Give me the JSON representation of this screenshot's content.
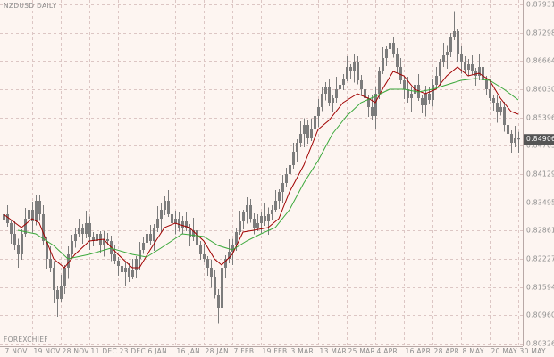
{
  "chart_data": {
    "type": "candlestick",
    "title": "NZDUSD DAILY",
    "watermark": "FOREXCHIEF",
    "categories": [
      "7 NOV",
      null,
      null,
      null,
      null,
      null,
      null,
      null,
      "19 NOV",
      null,
      null,
      null,
      null,
      null,
      null,
      null,
      "28 NOV",
      null,
      null,
      null,
      null,
      null,
      null,
      null,
      "11 DEC",
      null,
      null,
      null,
      null,
      null,
      null,
      null,
      "23 DEC",
      null,
      null,
      null,
      null,
      null,
      null,
      null,
      "6 JAN",
      null,
      null,
      null,
      null,
      null,
      null,
      null,
      "16 JAN",
      null,
      null,
      null,
      null,
      null,
      null,
      null,
      "28 JAN",
      null,
      null,
      null,
      null,
      null,
      null,
      null,
      "7 FEB",
      null,
      null,
      null,
      null,
      null,
      null,
      null,
      "19 FEB",
      null,
      null,
      null,
      null,
      null,
      null,
      null,
      "3 MAR",
      null,
      null,
      null,
      null,
      null,
      null,
      null,
      "13 MAR",
      null,
      null,
      null,
      null,
      null,
      null,
      null,
      "25 MAR",
      null,
      null,
      null,
      null,
      null,
      null,
      null,
      "4 APR",
      null,
      null,
      null,
      null,
      null,
      null,
      null,
      "16 APR",
      null,
      null,
      null,
      null,
      null,
      null,
      null,
      "28 APR",
      null,
      null,
      null,
      null,
      null,
      null,
      null,
      "8 MAY",
      null,
      null,
      null,
      null,
      null,
      null,
      null,
      "20 MAY",
      null,
      null,
      null,
      null,
      null,
      null,
      null,
      "30 MAY"
    ],
    "open": [
      0.831,
      0.8323,
      0.8303,
      0.8279,
      0.8253,
      0.8233,
      0.8279,
      0.8313,
      0.8333,
      0.8307,
      0.8353,
      0.8323,
      0.8263,
      0.8223,
      0.8203,
      0.8153,
      0.8133,
      0.8163,
      0.8203,
      0.8233,
      0.8263,
      0.8279,
      0.8293,
      0.8279,
      0.8303,
      0.8273,
      0.8263,
      0.8279,
      0.8253,
      0.8267,
      0.8263,
      0.8233,
      0.8219,
      0.8207,
      0.8193,
      0.8203,
      0.8183,
      0.8199,
      0.8223,
      0.8243,
      0.8259,
      0.8279,
      0.8263,
      0.8293,
      0.8313,
      0.8333,
      0.8353,
      0.8323,
      0.8303,
      0.8313,
      0.8293,
      0.8307,
      0.8293,
      0.8273,
      0.8287,
      0.8253,
      0.8233,
      0.8223,
      0.8203,
      0.8183,
      0.8143,
      0.8113,
      0.8203,
      0.8223,
      0.8239,
      0.8253,
      0.8283,
      0.8307,
      0.8327,
      0.8343,
      0.8313,
      0.8293,
      0.8303,
      0.8319,
      0.8307,
      0.8323,
      0.8333,
      0.8353,
      0.8373,
      0.8393,
      0.8413,
      0.8433,
      0.8463,
      0.8483,
      0.8503,
      0.8523,
      0.8493,
      0.8513,
      0.8543,
      0.8563,
      0.8593,
      0.8607,
      0.8573,
      0.8583,
      0.8603,
      0.8613,
      0.8627,
      0.8653,
      0.8643,
      0.8663,
      0.8623,
      0.8603,
      0.8583,
      0.8563,
      0.8543,
      0.8593,
      0.8643,
      0.8673,
      0.8693,
      0.8707,
      0.8683,
      0.8653,
      0.8623,
      0.8603,
      0.8583,
      0.8593,
      0.8613,
      0.8583,
      0.8567,
      0.8593,
      0.8579,
      0.8613,
      0.8633,
      0.8663,
      0.8679,
      0.8687,
      0.8719,
      0.8733,
      0.8683,
      0.8663,
      0.8647,
      0.8659,
      0.8643,
      0.8633,
      0.8653,
      0.8623,
      0.8603,
      0.8583,
      0.8573,
      0.8553,
      0.8563,
      0.8523,
      0.8503,
      0.8483,
      0.8493
    ],
    "high": [
      0.8335,
      0.8343,
      0.8311,
      0.8307,
      0.8268,
      0.8289,
      0.8337,
      0.8339,
      0.8351,
      0.8367,
      0.8365,
      0.8343,
      0.8271,
      0.8251,
      0.8218,
      0.8163,
      0.8187,
      0.8209,
      0.8251,
      0.8277,
      0.8291,
      0.8313,
      0.8301,
      0.8331,
      0.8318,
      0.8283,
      0.8303,
      0.8285,
      0.8285,
      0.8281,
      0.8275,
      0.8253,
      0.8227,
      0.8235,
      0.8218,
      0.8213,
      0.8223,
      0.8229,
      0.8261,
      0.8273,
      0.8291,
      0.8299,
      0.8301,
      0.8341,
      0.8348,
      0.8363,
      0.8377,
      0.8329,
      0.8331,
      0.8327,
      0.8319,
      0.8327,
      0.8301,
      0.8315,
      0.8302,
      0.8263,
      0.8257,
      0.8229,
      0.8221,
      0.8197,
      0.8155,
      0.8223,
      0.8231,
      0.8267,
      0.8268,
      0.8293,
      0.8331,
      0.8333,
      0.8361,
      0.8357,
      0.8325,
      0.8323,
      0.8327,
      0.8347,
      0.8338,
      0.8343,
      0.8377,
      0.8379,
      0.8411,
      0.8427,
      0.8445,
      0.8483,
      0.8491,
      0.8531,
      0.8538,
      0.8533,
      0.8537,
      0.8549,
      0.8581,
      0.8607,
      0.8619,
      0.8627,
      0.8591,
      0.8631,
      0.8628,
      0.8637,
      0.8677,
      0.8659,
      0.8681,
      0.8677,
      0.8635,
      0.8623,
      0.8591,
      0.8591,
      0.8608,
      0.8653,
      0.8697,
      0.8699,
      0.8725,
      0.8721,
      0.8695,
      0.8673,
      0.8631,
      0.8631,
      0.8608,
      0.8623,
      0.8637,
      0.8589,
      0.8611,
      0.8607,
      0.8625,
      0.8653,
      0.8671,
      0.8707,
      0.8702,
      0.8729,
      0.8778,
      0.8739,
      0.8701,
      0.8677,
      0.8671,
      0.8679,
      0.8651,
      0.8681,
      0.8668,
      0.8633,
      0.8627,
      0.8589,
      0.8591,
      0.8577,
      0.8575,
      0.8543,
      0.8511,
      0.8521,
      0.8508
    ],
    "low": [
      0.8295,
      0.8295,
      0.8257,
      0.8243,
      0.8203,
      0.8221,
      0.8273,
      0.8295,
      0.8282,
      0.8298,
      0.8308,
      0.8255,
      0.8201,
      0.8193,
      0.8123,
      0.8093,
      0.8127,
      0.8145,
      0.8178,
      0.8224,
      0.8248,
      0.8271,
      0.8257,
      0.8269,
      0.8243,
      0.8251,
      0.8257,
      0.8235,
      0.8228,
      0.8254,
      0.8218,
      0.8211,
      0.8185,
      0.8183,
      0.8163,
      0.8171,
      0.8177,
      0.8181,
      0.8198,
      0.8234,
      0.8244,
      0.8255,
      0.8241,
      0.8283,
      0.8283,
      0.8321,
      0.8317,
      0.8285,
      0.8278,
      0.8284,
      0.8278,
      0.8285,
      0.8251,
      0.8263,
      0.8223,
      0.8221,
      0.8217,
      0.8185,
      0.8158,
      0.8134,
      0.8078,
      0.8105,
      0.8181,
      0.8213,
      0.8209,
      0.8241,
      0.8277,
      0.8289,
      0.8302,
      0.8304,
      0.8278,
      0.8285,
      0.8281,
      0.8297,
      0.8277,
      0.8311,
      0.8327,
      0.8335,
      0.8348,
      0.8384,
      0.8398,
      0.8425,
      0.8441,
      0.8473,
      0.8473,
      0.8481,
      0.8487,
      0.8495,
      0.8518,
      0.8554,
      0.8578,
      0.8565,
      0.8551,
      0.8573,
      0.8573,
      0.8601,
      0.8621,
      0.8625,
      0.8618,
      0.8614,
      0.8588,
      0.8575,
      0.8541,
      0.8533,
      0.8513,
      0.8581,
      0.8637,
      0.8655,
      0.8668,
      0.8674,
      0.8638,
      0.8615,
      0.8581,
      0.8573,
      0.8553,
      0.8581,
      0.8577,
      0.8549,
      0.8542,
      0.857,
      0.8564,
      0.8605,
      0.8611,
      0.8653,
      0.8649,
      0.8675,
      0.8713,
      0.8665,
      0.8638,
      0.8638,
      0.8632,
      0.8635,
      0.8611,
      0.8623,
      0.8593,
      0.8591,
      0.8577,
      0.8555,
      0.8528,
      0.8544,
      0.8508,
      0.8495,
      0.8461,
      0.8473,
      0.8461
    ],
    "close": [
      0.8323,
      0.8303,
      0.8279,
      0.8253,
      0.8233,
      0.8279,
      0.8313,
      0.8333,
      0.8307,
      0.8353,
      0.8323,
      0.8263,
      0.8223,
      0.8203,
      0.8153,
      0.8133,
      0.8163,
      0.8203,
      0.8233,
      0.8263,
      0.8279,
      0.8293,
      0.8279,
      0.8303,
      0.8273,
      0.8263,
      0.8279,
      0.8253,
      0.8267,
      0.8263,
      0.8233,
      0.8219,
      0.8207,
      0.8193,
      0.8203,
      0.8183,
      0.8199,
      0.8223,
      0.8243,
      0.8259,
      0.8279,
      0.8263,
      0.8293,
      0.8313,
      0.8333,
      0.8353,
      0.8323,
      0.8303,
      0.8313,
      0.8293,
      0.8307,
      0.8293,
      0.8273,
      0.8287,
      0.8253,
      0.8233,
      0.8223,
      0.8203,
      0.8183,
      0.8143,
      0.8113,
      0.8203,
      0.8223,
      0.8239,
      0.8253,
      0.8283,
      0.8307,
      0.8327,
      0.8343,
      0.8313,
      0.8293,
      0.8303,
      0.8319,
      0.8307,
      0.8323,
      0.8333,
      0.8353,
      0.8373,
      0.8393,
      0.8413,
      0.8433,
      0.8463,
      0.8483,
      0.8503,
      0.8523,
      0.8493,
      0.8513,
      0.8543,
      0.8563,
      0.8593,
      0.8607,
      0.8573,
      0.8583,
      0.8603,
      0.8613,
      0.8627,
      0.8653,
      0.8643,
      0.8663,
      0.8623,
      0.8603,
      0.8583,
      0.8563,
      0.8543,
      0.8593,
      0.8643,
      0.8673,
      0.8693,
      0.8707,
      0.8683,
      0.8653,
      0.8623,
      0.8603,
      0.8583,
      0.8593,
      0.8613,
      0.8583,
      0.8567,
      0.8593,
      0.8579,
      0.8613,
      0.8633,
      0.8663,
      0.8679,
      0.8687,
      0.8719,
      0.8733,
      0.8683,
      0.8663,
      0.8647,
      0.8659,
      0.8643,
      0.8633,
      0.8653,
      0.8623,
      0.8603,
      0.8583,
      0.8573,
      0.8553,
      0.8563,
      0.8523,
      0.8503,
      0.8483,
      0.8493,
      0.84906
    ],
    "candle_color": "#7c7c7c",
    "series": [
      {
        "color": "#a00000",
        "x": [
          0,
          5,
          8,
          10,
          14,
          17,
          20,
          24,
          28,
          32,
          36,
          38,
          41,
          45,
          48,
          52,
          56,
          59,
          61,
          64,
          67,
          70,
          74,
          77,
          80,
          84,
          88,
          91,
          95,
          99,
          102,
          104,
          106,
          109,
          112,
          115,
          118,
          121,
          124,
          127,
          130,
          133,
          136,
          139,
          142,
          144
        ],
        "values": [
          0.8323,
          0.8293,
          0.8313,
          0.8303,
          0.8223,
          0.8203,
          0.8233,
          0.8263,
          0.8267,
          0.8233,
          0.8203,
          0.8203,
          0.8243,
          0.8293,
          0.8303,
          0.8293,
          0.8263,
          0.8223,
          0.8209,
          0.8233,
          0.8283,
          0.8287,
          0.8293,
          0.8313,
          0.8373,
          0.8433,
          0.8513,
          0.8533,
          0.8573,
          0.8593,
          0.8583,
          0.8573,
          0.8603,
          0.8643,
          0.8633,
          0.8603,
          0.8593,
          0.8603,
          0.8633,
          0.8653,
          0.8633,
          0.8639,
          0.8623,
          0.8583,
          0.8553,
          0.8547
        ]
      },
      {
        "color": "#3aa83a",
        "x": [
          4,
          9,
          14,
          18,
          24,
          30,
          36,
          40,
          44,
          50,
          56,
          60,
          64,
          68,
          72,
          76,
          80,
          84,
          88,
          92,
          96,
          100,
          104,
          108,
          112,
          116,
          120,
          124,
          128,
          132,
          136,
          140,
          144
        ],
        "values": [
          0.8287,
          0.8279,
          0.8253,
          0.8223,
          0.8233,
          0.8247,
          0.8233,
          0.8227,
          0.8247,
          0.8279,
          0.8273,
          0.8253,
          0.8243,
          0.8263,
          0.8279,
          0.8293,
          0.8333,
          0.8393,
          0.8443,
          0.8503,
          0.8543,
          0.8573,
          0.8587,
          0.8603,
          0.8603,
          0.8597,
          0.8603,
          0.8613,
          0.8623,
          0.8627,
          0.8623,
          0.8603,
          0.8579
        ]
      }
    ],
    "ylim": [
      0.8027,
      0.8803
    ],
    "yticks": [
      0.87931,
      0.87298,
      0.86664,
      {
        "value": 0.8603,
        "label": "0.86030"
      },
      0.85396,
      0.84763,
      0.84129,
      0.83495,
      0.82861,
      0.82227,
      0.81594,
      {
        "value": 0.8096,
        "label": "0.80960"
      },
      0.80326
    ],
    "grid": true,
    "last_price": 0.84906
  }
}
